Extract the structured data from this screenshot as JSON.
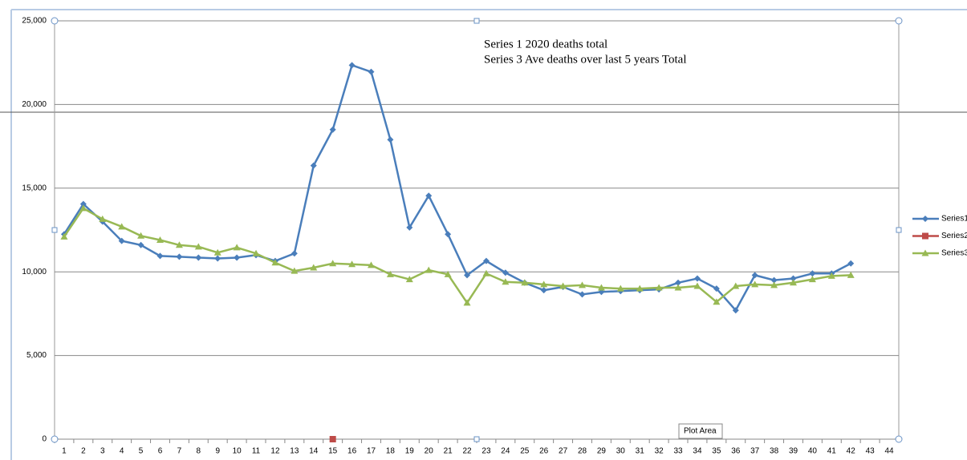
{
  "chart_data": {
    "type": "line",
    "annotations": [
      "Series 1 2020 deaths total",
      "Series 3 Ave deaths over last 5 years Total"
    ],
    "tooltip": "Plot Area",
    "categories": [
      "1",
      "2",
      "3",
      "4",
      "5",
      "6",
      "7",
      "8",
      "9",
      "10",
      "11",
      "12",
      "13",
      "14",
      "15",
      "16",
      "17",
      "18",
      "19",
      "20",
      "21",
      "22",
      "23",
      "24",
      "25",
      "26",
      "27",
      "28",
      "29",
      "30",
      "31",
      "32",
      "33",
      "34",
      "35",
      "36",
      "37",
      "38",
      "39",
      "40",
      "41",
      "42",
      "43",
      "44"
    ],
    "series": [
      {
        "name": "Series1",
        "color": "#4a7ebb",
        "marker": "diamond",
        "values": [
          12250,
          14050,
          13000,
          11850,
          11600,
          10950,
          10900,
          10850,
          10800,
          10850,
          11000,
          10650,
          11100,
          16350,
          18500,
          22350,
          21950,
          17900,
          12650,
          14550,
          12250,
          9800,
          10650,
          9950,
          9350,
          8900,
          9100,
          8650,
          8800,
          8850,
          8900,
          8950,
          9350,
          9600,
          9000,
          7700,
          9800,
          9500,
          9600,
          9900,
          9900,
          10500,
          null,
          null
        ]
      },
      {
        "name": "Series2",
        "color": "#be4b48",
        "marker": "square",
        "values": [
          null,
          null,
          null,
          null,
          null,
          null,
          null,
          null,
          null,
          null,
          null,
          null,
          null,
          null,
          0,
          null,
          null,
          null,
          null,
          null,
          null,
          null,
          null,
          null,
          null,
          null,
          null,
          null,
          null,
          null,
          null,
          null,
          null,
          null,
          null,
          null,
          null,
          null,
          null,
          null,
          null,
          null,
          null,
          null
        ]
      },
      {
        "name": "Series3",
        "color": "#98b954",
        "marker": "triangle",
        "values": [
          12100,
          13800,
          13150,
          12700,
          12150,
          11900,
          11600,
          11500,
          11150,
          11450,
          11100,
          10550,
          10050,
          10250,
          10500,
          10450,
          10400,
          9850,
          9550,
          10100,
          9850,
          8150,
          9900,
          9400,
          9350,
          9250,
          9150,
          9200,
          9050,
          9000,
          9000,
          9050,
          9050,
          9150,
          8200,
          9150,
          9250,
          9200,
          9350,
          9550,
          9750,
          9800,
          null,
          null
        ]
      }
    ],
    "ylim": [
      0,
      25000
    ],
    "yticks": [
      0,
      {
        "value": 5000,
        "label": "5,000"
      },
      {
        "value": 10000,
        "label": "10,000"
      },
      {
        "value": 15000,
        "label": "15,000"
      },
      {
        "value": 20000,
        "label": "20,000"
      },
      {
        "value": 25000,
        "label": "25,000"
      }
    ],
    "grid": true,
    "legend": "right"
  }
}
